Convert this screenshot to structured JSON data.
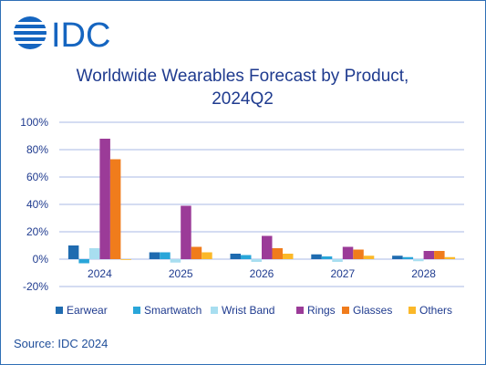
{
  "logo": {
    "text": "IDC",
    "color": "#1565c0"
  },
  "source": "Source: IDC 2024",
  "chart_data": {
    "type": "bar",
    "title": [
      "Worldwide Wearables Forecast by Product,",
      "2024Q2"
    ],
    "xlabel": "",
    "ylabel": "",
    "categories": [
      "2024",
      "2025",
      "2026",
      "2027",
      "2028"
    ],
    "ylim": [
      -20,
      100
    ],
    "yticks": [
      "100%",
      "80%",
      "60%",
      "40%",
      "20%",
      "0%",
      "-20%"
    ],
    "ytick_values": [
      100,
      80,
      60,
      40,
      20,
      0,
      -20
    ],
    "grid": true,
    "legend_position": "bottom",
    "series": [
      {
        "name": "Earwear",
        "color": "#1f6bb0",
        "values": [
          10,
          5,
          4,
          3.5,
          2.5
        ]
      },
      {
        "name": "Smartwatch",
        "color": "#29a6d9",
        "values": [
          -3,
          5,
          3,
          2,
          1.5
        ]
      },
      {
        "name": "Wrist Band",
        "color": "#a8def0",
        "values": [
          8,
          -2.5,
          -2,
          -2,
          -1.5
        ]
      },
      {
        "name": "Rings",
        "color": "#9b3b98",
        "values": [
          88,
          39,
          17,
          9,
          6
        ]
      },
      {
        "name": "Glasses",
        "color": "#f07c1c",
        "values": [
          73,
          9,
          8,
          7,
          6
        ]
      },
      {
        "name": "Others",
        "color": "#fbb829",
        "values": [
          0,
          5,
          4,
          2.5,
          1.5
        ]
      }
    ]
  }
}
